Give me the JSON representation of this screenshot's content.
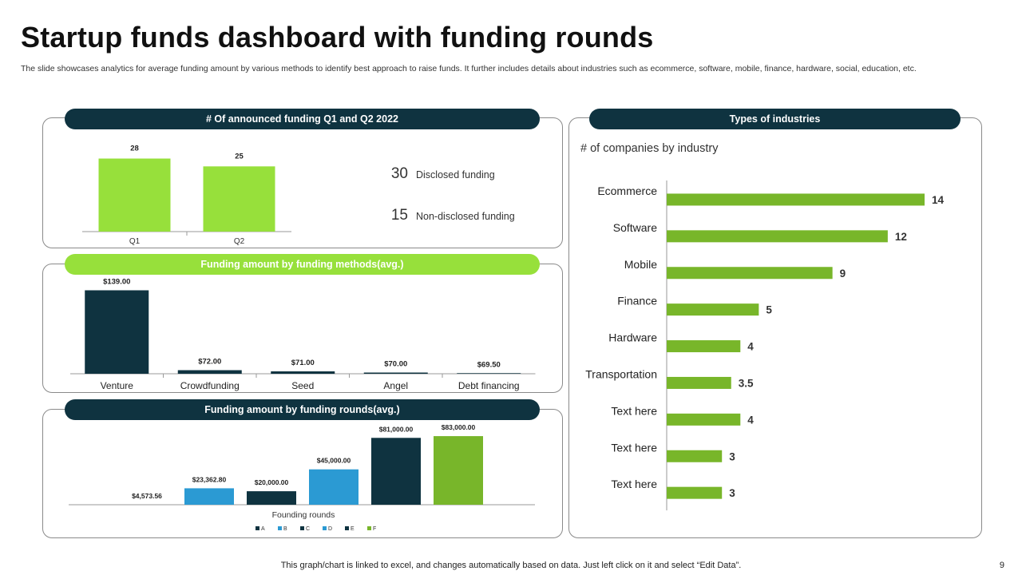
{
  "title": "Startup funds dashboard with funding rounds",
  "subtitle": "The slide showcases analytics for average funding amount by various methods to identify best approach to raise funds. It further includes details about industries such as ecommerce, software, mobile, finance, hardware, social, education, etc.",
  "panels": {
    "announced": {
      "header": "# Of announced funding Q1 and Q2 2022",
      "stats": [
        {
          "value": "30",
          "label": "Disclosed funding"
        },
        {
          "value": "15",
          "label": "Non-disclosed funding"
        }
      ]
    },
    "methods": {
      "header": "Funding amount by funding methods(avg.)"
    },
    "rounds": {
      "header": "Funding amount by funding rounds(avg.)"
    },
    "industries": {
      "header": "Types of industries"
    }
  },
  "footer": "This graph/chart is linked to excel,  and changes automatically based on data. Just left click on it and select “Edit Data”.",
  "page_number": "9",
  "colors": {
    "dark": "#0f3340",
    "green_light": "#97e03b",
    "green": "#78b62a",
    "blue": "#2b9ad3"
  },
  "chart_data": [
    {
      "id": "announced",
      "type": "bar",
      "categories": [
        "Q1",
        "Q2"
      ],
      "values": [
        28,
        25
      ],
      "data_labels": [
        "28",
        "25"
      ],
      "ylim": [
        0,
        30
      ],
      "grid": false
    },
    {
      "id": "methods",
      "type": "bar",
      "categories": [
        "Venture",
        "Crowdfunding",
        "Seed",
        "Angel",
        "Debt financing"
      ],
      "values": [
        139.0,
        72.0,
        71.0,
        70.0,
        69.5
      ],
      "data_labels": [
        "$139.00",
        "$72.00",
        "$71.00",
        "$70.00",
        "$69.50"
      ],
      "ylim": [
        69,
        140
      ],
      "grid": false
    },
    {
      "id": "rounds",
      "type": "bar",
      "xlabel": "Founding rounds",
      "series": [
        {
          "name": "A",
          "values": [
            4573.56
          ],
          "label": "$4,573.56",
          "color": "#0f3340"
        },
        {
          "name": "B",
          "values": [
            23362.8
          ],
          "label": "$23,362.80",
          "color": "#2b9ad3"
        },
        {
          "name": "C",
          "values": [
            20000.0
          ],
          "label": "$20,000.00",
          "color": "#0f3340"
        },
        {
          "name": "D",
          "values": [
            45000.0
          ],
          "label": "$45,000.00",
          "color": "#2b9ad3"
        },
        {
          "name": "E",
          "values": [
            81000.0
          ],
          "label": "$81,000.00",
          "color": "#0f3340"
        },
        {
          "name": "F",
          "values": [
            83000.0
          ],
          "label": "$83,000.00",
          "color": "#78b62a"
        }
      ],
      "ylim": [
        4573.56,
        84000
      ],
      "legend": "bottom",
      "grid": false
    },
    {
      "id": "industries",
      "type": "bar",
      "orientation": "horizontal",
      "title": "# of companies by industry",
      "categories": [
        "Ecommerce",
        "Software",
        "Mobile",
        "Finance",
        "Hardware",
        "Transportation",
        "Text here",
        "Text here",
        "Text here"
      ],
      "values": [
        14,
        12,
        9,
        5,
        4,
        3.5,
        4,
        3,
        3
      ],
      "data_labels": [
        "14",
        "12",
        "9",
        "5",
        "4",
        "3.5",
        "4",
        "3",
        "3"
      ],
      "xlim": [
        0,
        14
      ],
      "grid": false
    }
  ]
}
